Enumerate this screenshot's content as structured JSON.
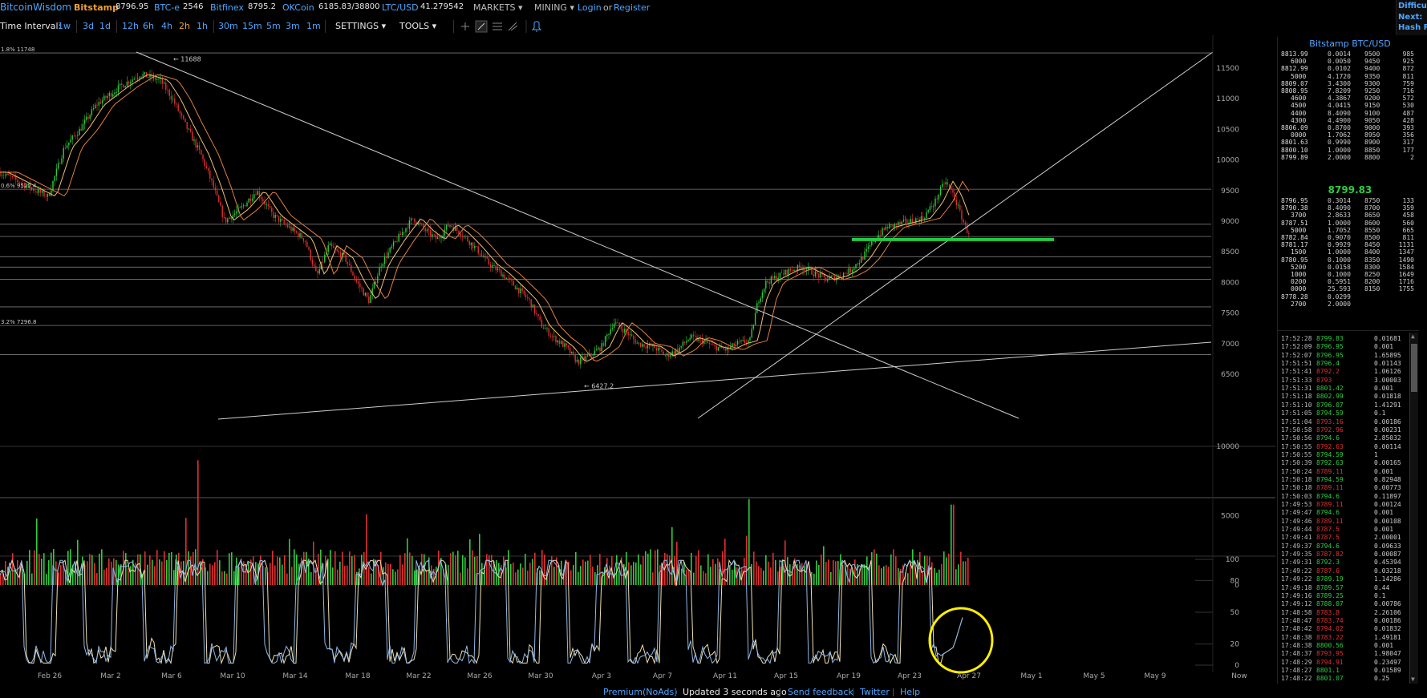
{
  "topbar": {
    "logo": "BitcoinWisdom",
    "tickers": [
      {
        "name": "Bitstamp",
        "price": "8796.95"
      },
      {
        "name": "BTC-e",
        "price": "2546"
      },
      {
        "name": "Bitfinex",
        "price": "8795.2"
      },
      {
        "name": "OKCoin",
        "price": "6185.83/38800"
      },
      {
        "name": "LTC/USD",
        "price": "41.279542"
      }
    ],
    "markets": "MARKETS",
    "mining": "MINING",
    "login": "Login",
    "or": "or",
    "register": "Register"
  },
  "rightedge": {
    "l1": "Difficu",
    "l2": "Next:",
    "l3": "Hash R"
  },
  "toolbar": {
    "time_interval": "Time Interval:",
    "intervals": [
      "1w",
      "3d",
      "1d",
      "12h",
      "6h",
      "4h",
      "2h",
      "1h",
      "30m",
      "15m",
      "5m",
      "3m",
      "1m"
    ],
    "active_interval": "2h",
    "settings": "SETTINGS",
    "tools": "TOOLS"
  },
  "chart": {
    "y_ticks": [
      "11500",
      "11000",
      "10500",
      "10000",
      "9500",
      "9000",
      "8500",
      "8000",
      "7500",
      "7000",
      "6500"
    ],
    "vol_ticks": [
      "10000",
      "5000",
      "0"
    ],
    "osc_ticks": [
      "100",
      "80",
      "50",
      "20",
      "0"
    ],
    "x_ticks": [
      "Feb 26",
      "Mar 2",
      "Mar 6",
      "Mar 10",
      "Mar 14",
      "Mar 18",
      "Mar 22",
      "Mar 26",
      "Mar 30",
      "Apr 3",
      "Apr 7",
      "Apr 11",
      "Apr 15",
      "Apr 19",
      "Apr 23",
      "Apr 27",
      "May 1",
      "May 5",
      "May 9",
      "Now"
    ],
    "annotations": {
      "high": "11688",
      "low": "6427.2",
      "fib1": "1.8% 11748",
      "fib2": "0.6% 9522.4",
      "fib3": "3.2% 7296.8"
    },
    "colors": {
      "up": "#2ecc40",
      "down": "#e03030",
      "accent_line": "#22cc44",
      "circle": "#ffee00"
    }
  },
  "orderbook": {
    "title": "Bitstamp BTC/USD",
    "last_price": "8799.83",
    "asks": [
      [
        "8813.99",
        "0.0014",
        "9500",
        "985"
      ],
      [
        "6000",
        "0.0050",
        "9450",
        "925"
      ],
      [
        "8812.99",
        "0.0102",
        "9400",
        "872"
      ],
      [
        "5000",
        "4.1720",
        "9350",
        "811"
      ],
      [
        "8809.07",
        "3.4300",
        "9300",
        "759"
      ],
      [
        "8808.95",
        "7.8209",
        "9250",
        "716"
      ],
      [
        "4600",
        "4.3867",
        "9200",
        "572"
      ],
      [
        "4500",
        "4.0415",
        "9150",
        "530"
      ],
      [
        "4400",
        "8.4090",
        "9100",
        "487"
      ],
      [
        "4300",
        "4.4900",
        "9050",
        "428"
      ],
      [
        "8806.09",
        "0.8700",
        "9000",
        "393"
      ],
      [
        "0000",
        "1.7062",
        "8950",
        "356"
      ],
      [
        "8801.63",
        "0.9990",
        "8900",
        "317"
      ],
      [
        "8800.10",
        "1.0000",
        "8850",
        "177"
      ],
      [
        "8799.89",
        "2.0000",
        "8800",
        "2"
      ]
    ],
    "bids": [
      [
        "8796.95",
        "0.3014",
        "8750",
        "133"
      ],
      [
        "8790.38",
        "8.4090",
        "8700",
        "359"
      ],
      [
        "3700",
        "2.8633",
        "8650",
        "458"
      ],
      [
        "8787.51",
        "1.0000",
        "8600",
        "560"
      ],
      [
        "5000",
        "1.7052",
        "8550",
        "665"
      ],
      [
        "8782.84",
        "0.9070",
        "8500",
        "811"
      ],
      [
        "8781.17",
        "0.9929",
        "8450",
        "1131"
      ],
      [
        "1500",
        "1.0000",
        "8400",
        "1347"
      ],
      [
        "8780.95",
        "0.1000",
        "8350",
        "1490"
      ],
      [
        "5200",
        "0.0158",
        "8300",
        "1584"
      ],
      [
        "1000",
        "0.1000",
        "8250",
        "1649"
      ],
      [
        "0200",
        "0.5951",
        "8200",
        "1716"
      ],
      [
        "0000",
        "25.593",
        "8150",
        "1755"
      ],
      [
        "8778.28",
        "0.0299",
        "",
        ""
      ],
      [
        "2700",
        "2.0000",
        "",
        ""
      ]
    ],
    "trades": [
      [
        "17:52:28",
        "8799.83",
        "0.01681",
        "up"
      ],
      [
        "17:52:09",
        "8796.95",
        "0.001",
        "up"
      ],
      [
        "17:52:07",
        "8796.95",
        "1.65895",
        "up"
      ],
      [
        "17:51:51",
        "8796.4",
        "0.01143",
        "up"
      ],
      [
        "17:51:41",
        "8792.2",
        "1.06126",
        "down"
      ],
      [
        "17:51:33",
        "8793",
        "3.00003",
        "down"
      ],
      [
        "17:51:31",
        "8801.42",
        "0.001",
        "up"
      ],
      [
        "17:51:18",
        "8802.99",
        "0.01818",
        "up"
      ],
      [
        "17:51:10",
        "8796.07",
        "1.41291",
        "up"
      ],
      [
        "17:51:05",
        "8794.59",
        "0.1",
        "up"
      ],
      [
        "17:51:04",
        "8793.16",
        "0.00186",
        "down"
      ],
      [
        "17:50:58",
        "8792.96",
        "0.00231",
        "down"
      ],
      [
        "17:50:56",
        "8794.6",
        "2.85032",
        "up"
      ],
      [
        "17:50:55",
        "8792.63",
        "0.00114",
        "down"
      ],
      [
        "17:50:55",
        "8794.59",
        "1",
        "up"
      ],
      [
        "17:50:39",
        "8792.63",
        "0.00165",
        "up"
      ],
      [
        "17:50:24",
        "8789.11",
        "0.001",
        "down"
      ],
      [
        "17:50:18",
        "8794.59",
        "0.82948",
        "up"
      ],
      [
        "17:50:18",
        "8789.11",
        "0.00773",
        "down"
      ],
      [
        "17:50:03",
        "8794.6",
        "0.11897",
        "up"
      ],
      [
        "17:49:53",
        "8789.11",
        "0.00124",
        "down"
      ],
      [
        "17:49:47",
        "8794.6",
        "0.001",
        "up"
      ],
      [
        "17:49:46",
        "8789.11",
        "0.00108",
        "down"
      ],
      [
        "17:49:44",
        "8787.5",
        "0.001",
        "down"
      ],
      [
        "17:49:41",
        "8787.5",
        "2.00001",
        "down"
      ],
      [
        "17:49:37",
        "8794.6",
        "0.09633",
        "up"
      ],
      [
        "17:49:35",
        "8787.82",
        "0.00087",
        "down"
      ],
      [
        "17:49:31",
        "8792.3",
        "0.45394",
        "up"
      ],
      [
        "17:49:22",
        "8787.6",
        "0.03218",
        "down"
      ],
      [
        "17:49:22",
        "8789.19",
        "1.14286",
        "up"
      ],
      [
        "17:49:18",
        "8789.57",
        "0.44",
        "up"
      ],
      [
        "17:49:16",
        "8789.25",
        "0.1",
        "up"
      ],
      [
        "17:49:12",
        "8788.07",
        "0.00786",
        "up"
      ],
      [
        "17:48:58",
        "8783.8",
        "2.26106",
        "down"
      ],
      [
        "17:48:47",
        "8783.74",
        "0.00186",
        "down"
      ],
      [
        "17:48:42",
        "8794.02",
        "0.01832",
        "down"
      ],
      [
        "17:48:38",
        "8783.22",
        "1.49181",
        "down"
      ],
      [
        "17:48:38",
        "8800.56",
        "0.001",
        "up"
      ],
      [
        "17:48:37",
        "8793.95",
        "1.98047",
        "down"
      ],
      [
        "17:48:29",
        "8794.91",
        "0.23497",
        "down"
      ],
      [
        "17:48:27",
        "8801.1",
        "0.01589",
        "up"
      ],
      [
        "17:48:22",
        "8801.07",
        "0.25",
        "up"
      ]
    ]
  },
  "footer": {
    "premium": "Premium(NoAds)",
    "updated": "Updated 3 seconds ago",
    "feedback": "Send feedback",
    "twitter": "Twitter",
    "help": "Help"
  }
}
